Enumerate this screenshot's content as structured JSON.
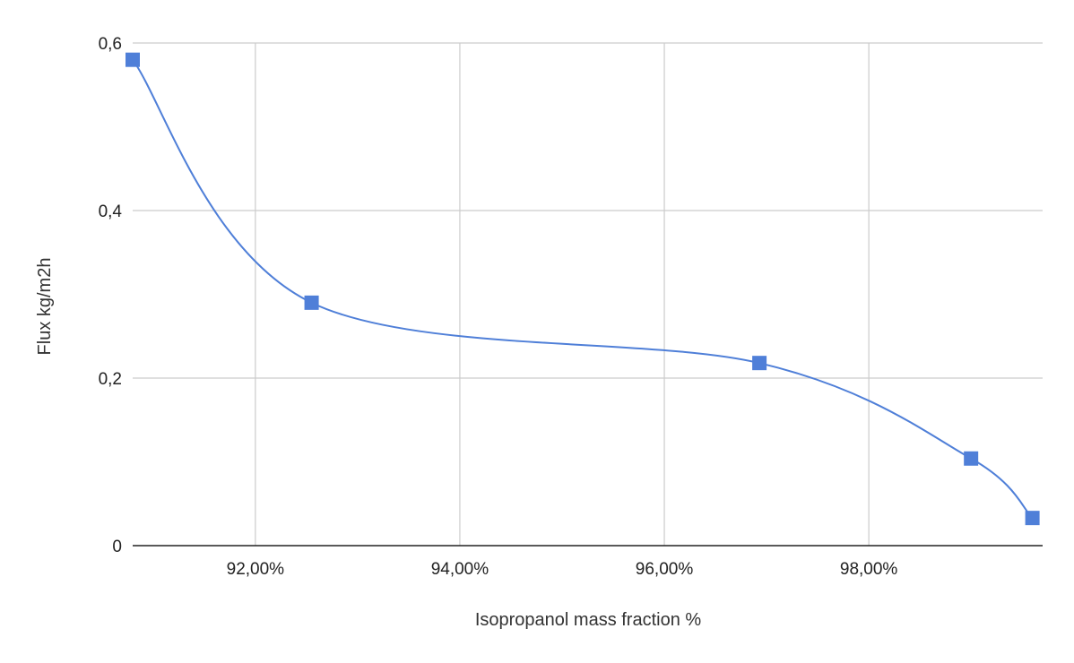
{
  "chart_data": {
    "type": "line",
    "title": "",
    "xlabel": "Isopropanol mass fraction %",
    "ylabel": "Flux kg/m2h",
    "xlim": [
      90.8,
      99.7
    ],
    "ylim": [
      0,
      0.6
    ],
    "x_ticks": [
      {
        "value": 92,
        "label": "92,00%"
      },
      {
        "value": 94,
        "label": "94,00%"
      },
      {
        "value": 96,
        "label": "96,00%"
      },
      {
        "value": 98,
        "label": "98,00%"
      }
    ],
    "y_ticks": [
      {
        "value": 0,
        "label": "0"
      },
      {
        "value": 0.2,
        "label": "0,2"
      },
      {
        "value": 0.4,
        "label": "0,4"
      },
      {
        "value": 0.6,
        "label": "0,6"
      }
    ],
    "grid": true,
    "legend": "none",
    "series": [
      {
        "marker": "square",
        "color": "#4f7fd8",
        "points": [
          {
            "x": 90.8,
            "y": 0.58
          },
          {
            "x": 92.55,
            "y": 0.29
          },
          {
            "x": 96.93,
            "y": 0.218
          },
          {
            "x": 99.0,
            "y": 0.104
          },
          {
            "x": 99.6,
            "y": 0.033
          }
        ]
      }
    ]
  }
}
